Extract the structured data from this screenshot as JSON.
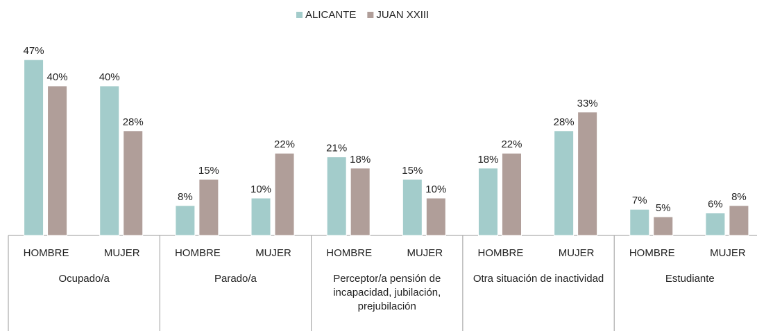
{
  "chart_data": {
    "type": "bar",
    "categories": [
      "HOMBRE",
      "MUJER",
      "HOMBRE",
      "MUJER",
      "HOMBRE",
      "MUJER",
      "HOMBRE",
      "MUJER",
      "HOMBRE",
      "MUJER"
    ],
    "groups": [
      "Ocupado/a",
      "Parado/a",
      "Perceptor/a pensión de incapacidad, jubilación, prejubilación",
      "Otra situación de inactividad",
      "Estudiante"
    ],
    "series": [
      {
        "name": "ALICANTE",
        "color": "#a3cccb",
        "values": [
          47,
          40,
          8,
          10,
          21,
          15,
          18,
          28,
          7,
          6
        ],
        "value_labels": [
          "47%",
          "40%",
          "8%",
          "10%",
          "21%",
          "15%",
          "18%",
          "28%",
          "7%",
          "6%"
        ]
      },
      {
        "name": "JUAN XXIII",
        "color": "#b09e99",
        "values": [
          40,
          28,
          15,
          22,
          18,
          10,
          22,
          33,
          5,
          8
        ],
        "value_labels": [
          "40%",
          "28%",
          "15%",
          "22%",
          "18%",
          "10%",
          "22%",
          "33%",
          "5%",
          "8%"
        ]
      }
    ],
    "legend": "top"
  }
}
